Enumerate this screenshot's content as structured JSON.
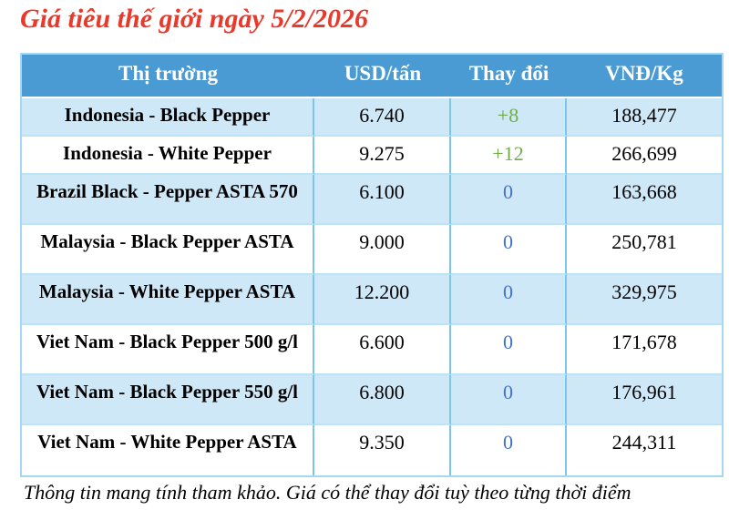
{
  "title": "Giá tiêu thế giới ngày 5/2/2026",
  "footer": "Thông tin mang tính tham khảo. Giá có thể thay đổi tuỳ theo từng thời điểm",
  "colors": {
    "title": "#e8392b",
    "header_bg": "#4a9bd4",
    "header_text": "#ffffff",
    "row_bg": "#ffffff",
    "row_alt_bg": "#cfe8f7",
    "outer_border": "#a5d8f2",
    "grid_vertical": "#7cc6ec",
    "grid_horizontal": "#bce3f7",
    "change_positive": "#70ad47",
    "change_zero": "#4472c4"
  },
  "table": {
    "columns": [
      "Thị trường",
      "USD/tấn",
      "Thay đổi",
      "VNĐ/Kg"
    ],
    "rows": [
      {
        "market": "Indonesia - Black Pepper",
        "usd": "6.740",
        "change": "+8",
        "change_type": "positive",
        "vnd": "188,477"
      },
      {
        "market": "Indonesia - White Pepper",
        "usd": "9.275",
        "change": "+12",
        "change_type": "positive",
        "vnd": "266,699"
      },
      {
        "market": "Brazil Black - Pepper ASTA 570",
        "usd": "6.100",
        "change": "0",
        "change_type": "zero",
        "vnd": "163,668"
      },
      {
        "market": "Malaysia - Black Pepper ASTA",
        "usd": "9.000",
        "change": "0",
        "change_type": "zero",
        "vnd": "250,781"
      },
      {
        "market": "Malaysia - White Pepper ASTA",
        "usd": "12.200",
        "change": "0",
        "change_type": "zero",
        "vnd": "329,975"
      },
      {
        "market": "Viet Nam - Black Pepper 500 g/l",
        "usd": "6.600",
        "change": "0",
        "change_type": "zero",
        "vnd": "171,678"
      },
      {
        "market": "Viet Nam - Black Pepper 550 g/l",
        "usd": "6.800",
        "change": "0",
        "change_type": "zero",
        "vnd": "176,961"
      },
      {
        "market": "Viet Nam - White Pepper ASTA",
        "usd": "9.350",
        "change": "0",
        "change_type": "zero",
        "vnd": "244,311"
      }
    ]
  },
  "chart_data": {
    "type": "table",
    "title": "Giá tiêu thế giới ngày 5/2/2026",
    "columns": [
      "Thị trường",
      "USD/tấn",
      "Thay đổi",
      "VNĐ/Kg"
    ],
    "rows": [
      [
        "Indonesia - Black Pepper",
        "6.740",
        "+8",
        "188,477"
      ],
      [
        "Indonesia - White Pepper",
        "9.275",
        "+12",
        "266,699"
      ],
      [
        "Brazil Black - Pepper ASTA 570",
        "6.100",
        "0",
        "163,668"
      ],
      [
        "Malaysia - Black Pepper ASTA",
        "9.000",
        "0",
        "250,781"
      ],
      [
        "Malaysia - White Pepper ASTA",
        "12.200",
        "0",
        "329,975"
      ],
      [
        "Viet Nam - Black Pepper 500 g/l",
        "6.600",
        "0",
        "171,678"
      ],
      [
        "Viet Nam - Black Pepper 550 g/l",
        "6.800",
        "0",
        "176,961"
      ],
      [
        "Viet Nam - White Pepper ASTA",
        "9.350",
        "0",
        "244,311"
      ]
    ],
    "note": "Thông tin mang tính tham khảo. Giá có thể thay đổi tuỳ theo từng thời điểm"
  }
}
